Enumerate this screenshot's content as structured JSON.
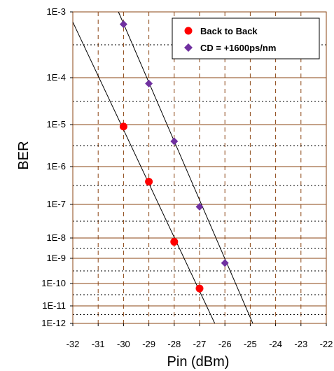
{
  "chart_data": {
    "type": "scatter",
    "xlabel": "Pin (dBm)",
    "ylabel": "BER",
    "xlim": [
      -32,
      -22
    ],
    "x_ticks": [
      "-32",
      "-31",
      "-30",
      "-29",
      "-28",
      "-27",
      "-26",
      "-25",
      "-24",
      "-23",
      "-22"
    ],
    "y_scale": "erfc-like (non-linear BER scale)",
    "y_ticks": [
      "1E-3",
      "1E-4",
      "1E-5",
      "1E-6",
      "1E-7",
      "1E-8",
      "1E-9",
      "1E-10",
      "1E-11",
      "1E-12"
    ],
    "grid": true,
    "legend_position": "top-right",
    "series": [
      {
        "name": "Back to Back",
        "marker": "circle",
        "color": "#ff0000",
        "points": [
          {
            "x": -30,
            "y": "9E-6"
          },
          {
            "x": -29,
            "y": "4E-7"
          },
          {
            "x": -28,
            "y": "6.5E-9"
          },
          {
            "x": -27,
            "y": "6E-11"
          }
        ],
        "fit_line": [
          {
            "x": -32,
            "y": "7E-4"
          },
          {
            "x": -26.4,
            "y": "1E-12"
          }
        ]
      },
      {
        "name": "CD = +1600ps/nm",
        "marker": "diamond",
        "color": "#7030a0",
        "points": [
          {
            "x": -30,
            "y": "6.5E-4"
          },
          {
            "x": -29,
            "y": "7.5E-5"
          },
          {
            "x": -28,
            "y": "4E-6"
          },
          {
            "x": -27,
            "y": "8.5E-8"
          },
          {
            "x": -26,
            "y": "6.5E-10"
          }
        ],
        "fit_line": [
          {
            "x": -30.2,
            "y": "1E-3"
          },
          {
            "x": -24.9,
            "y": "1E-12"
          }
        ]
      }
    ]
  }
}
